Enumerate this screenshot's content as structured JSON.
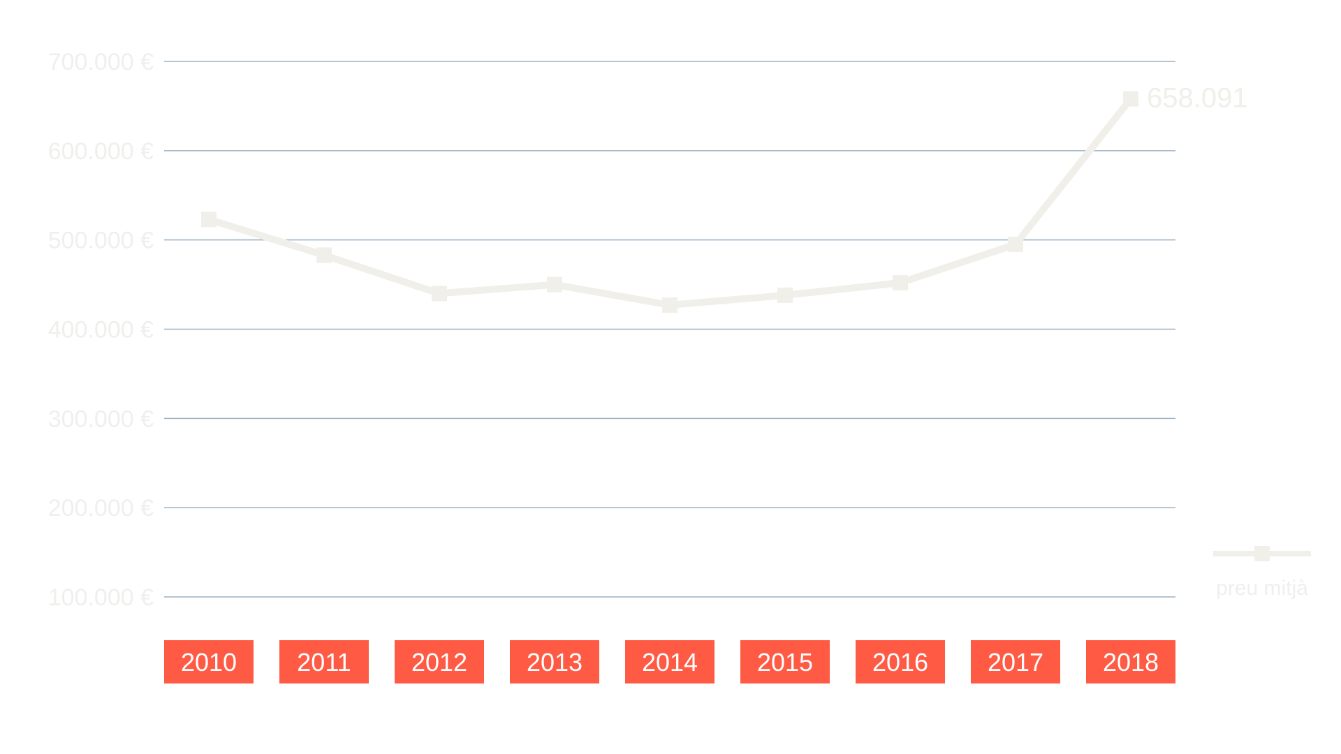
{
  "chart_data": {
    "type": "line",
    "categories": [
      "2010",
      "2011",
      "2012",
      "2013",
      "2014",
      "2015",
      "2016",
      "2017",
      "2018"
    ],
    "series": [
      {
        "name": "preu mitjà",
        "values": [
          523000,
          483000,
          440000,
          450000,
          427000,
          438000,
          452000,
          495000,
          658091
        ]
      }
    ],
    "data_labels": [
      {
        "category": "2018",
        "text": "658.091"
      }
    ],
    "yticks": [
      100000,
      200000,
      300000,
      400000,
      500000,
      600000,
      700000
    ],
    "ytick_labels": [
      "100.000 €",
      "200.000 €",
      "300.000 €",
      "400.000 €",
      "500.000 €",
      "600.000 €",
      "700.000 €"
    ],
    "ylim": [
      100000,
      700000
    ],
    "title": "",
    "xlabel": "",
    "ylabel": "",
    "grid": true,
    "legend_position": "right",
    "colors": {
      "line": "#f0efe9",
      "tick_text": "#efefed",
      "gridline": "#9bb0c4",
      "category_box": "#ff5a44",
      "category_text": "#ffffff"
    }
  }
}
